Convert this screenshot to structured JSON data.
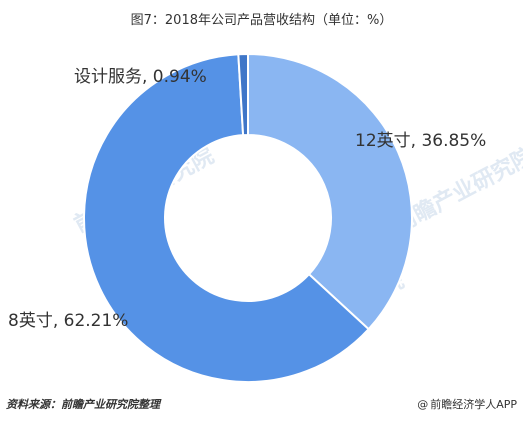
{
  "chart_data": {
    "type": "pie",
    "title": "图7：2018年公司产品营收结构（单位：%）",
    "categories": [
      "12英寸",
      "8英寸",
      "设计服务"
    ],
    "values": [
      36.85,
      62.21,
      0.94
    ],
    "labels": [
      "12英寸, 36.85%",
      "8英寸, 62.21%",
      "设计服务, 0.94%"
    ],
    "colors": [
      "#8ab6f2",
      "#5592e6",
      "#3f76c8"
    ],
    "legend": "none",
    "grid": false,
    "donut": true
  },
  "footer": {
    "source": "资料来源：前瞻产业研究院整理",
    "brand_symbol": "@",
    "brand": "前瞻经济学人APP"
  },
  "watermark_text": "前瞻产业研究院"
}
